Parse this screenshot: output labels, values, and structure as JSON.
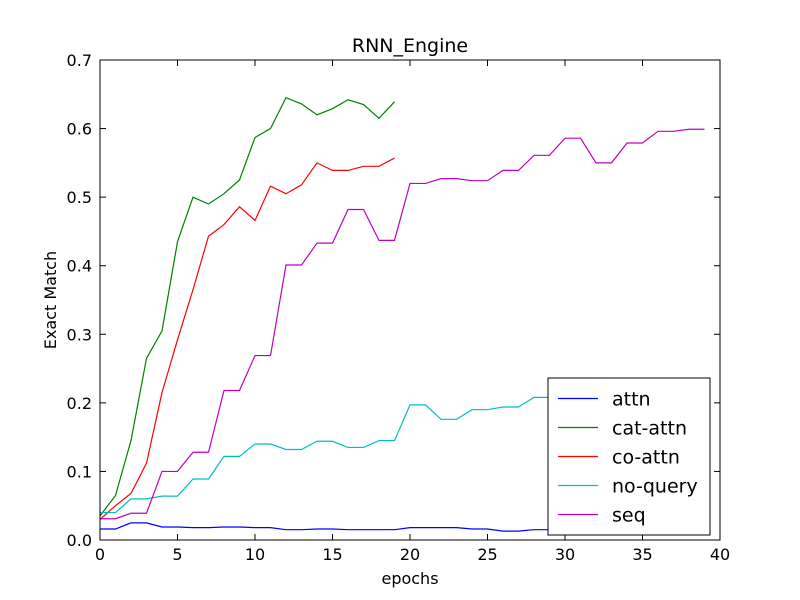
{
  "chart_data": {
    "type": "line",
    "title": "RNN_Engine",
    "xlabel": "epochs",
    "ylabel": "Exact Match",
    "xlim": [
      0,
      40
    ],
    "ylim": [
      0,
      0.7
    ],
    "xticks": [
      0,
      5,
      10,
      15,
      20,
      25,
      30,
      35,
      40
    ],
    "yticks": [
      0.0,
      0.1,
      0.2,
      0.3,
      0.4,
      0.5,
      0.6,
      0.7
    ],
    "xtick_labels": [
      "0",
      "5",
      "10",
      "15",
      "20",
      "25",
      "30",
      "35",
      "40"
    ],
    "ytick_labels": [
      "0.0",
      "0.1",
      "0.2",
      "0.3",
      "0.4",
      "0.5",
      "0.6",
      "0.7"
    ],
    "grid": false,
    "legend_position": "lower-right",
    "series": [
      {
        "name": "attn",
        "color": "#0000ff",
        "x": [
          0,
          1,
          2,
          3,
          4,
          5,
          6,
          7,
          8,
          9,
          10,
          11,
          12,
          13,
          14,
          15,
          16,
          17,
          18,
          19,
          20,
          21,
          22,
          23,
          24,
          25,
          26,
          27,
          28,
          29,
          30,
          31,
          32,
          33,
          34,
          35,
          36,
          37,
          38,
          39
        ],
        "y": [
          0.016,
          0.016,
          0.025,
          0.025,
          0.019,
          0.019,
          0.018,
          0.018,
          0.019,
          0.019,
          0.018,
          0.018,
          0.015,
          0.015,
          0.016,
          0.016,
          0.015,
          0.015,
          0.015,
          0.015,
          0.018,
          0.018,
          0.018,
          0.018,
          0.016,
          0.016,
          0.013,
          0.013,
          0.015,
          0.015,
          0.015,
          0.015,
          0.014,
          0.014,
          0.014,
          0.014,
          0.014,
          0.014,
          0.014,
          0.014
        ]
      },
      {
        "name": "cat-attn",
        "color": "#008000",
        "x": [
          0,
          1,
          2,
          3,
          4,
          5,
          6,
          7,
          8,
          9,
          10,
          11,
          12,
          13,
          14,
          15,
          16,
          17,
          18,
          19
        ],
        "y": [
          0.035,
          0.065,
          0.145,
          0.265,
          0.305,
          0.435,
          0.5,
          0.49,
          0.505,
          0.525,
          0.587,
          0.6,
          0.645,
          0.636,
          0.62,
          0.629,
          0.642,
          0.635,
          0.615,
          0.639
        ]
      },
      {
        "name": "co-attn",
        "color": "#ff0000",
        "x": [
          0,
          1,
          2,
          3,
          4,
          5,
          6,
          7,
          8,
          9,
          10,
          11,
          12,
          13,
          14,
          15,
          16,
          17,
          18,
          19
        ],
        "y": [
          0.03,
          0.05,
          0.068,
          0.112,
          0.215,
          0.292,
          0.365,
          0.443,
          0.46,
          0.486,
          0.466,
          0.516,
          0.505,
          0.518,
          0.55,
          0.539,
          0.539,
          0.545,
          0.545,
          0.557
        ]
      },
      {
        "name": "no-query",
        "color": "#00bfbf",
        "x": [
          0,
          1,
          2,
          3,
          4,
          5,
          6,
          7,
          8,
          9,
          10,
          11,
          12,
          13,
          14,
          15,
          16,
          17,
          18,
          19,
          20,
          21,
          22,
          23,
          24,
          25,
          26,
          27,
          28,
          29,
          30,
          31,
          32,
          33,
          34,
          35,
          36,
          37,
          38,
          39
        ],
        "y": [
          0.04,
          0.04,
          0.06,
          0.06,
          0.064,
          0.064,
          0.089,
          0.089,
          0.122,
          0.122,
          0.14,
          0.14,
          0.132,
          0.132,
          0.144,
          0.144,
          0.135,
          0.135,
          0.145,
          0.145,
          0.197,
          0.197,
          0.176,
          0.176,
          0.19,
          0.19,
          0.194,
          0.194,
          0.208,
          0.208,
          0.2,
          0.2,
          0.205,
          0.205,
          0.21,
          0.21,
          0.212,
          0.212,
          0.215,
          0.215
        ]
      },
      {
        "name": "seq",
        "color": "#bf00bf",
        "x": [
          0,
          1,
          2,
          3,
          4,
          5,
          6,
          7,
          8,
          9,
          10,
          11,
          12,
          13,
          14,
          15,
          16,
          17,
          18,
          19,
          20,
          21,
          22,
          23,
          24,
          25,
          26,
          27,
          28,
          29,
          30,
          31,
          32,
          33,
          34,
          35,
          36,
          37,
          38,
          39
        ],
        "y": [
          0.031,
          0.031,
          0.039,
          0.039,
          0.1,
          0.1,
          0.128,
          0.128,
          0.218,
          0.218,
          0.269,
          0.269,
          0.401,
          0.401,
          0.433,
          0.433,
          0.482,
          0.482,
          0.437,
          0.437,
          0.52,
          0.52,
          0.527,
          0.527,
          0.524,
          0.524,
          0.539,
          0.539,
          0.561,
          0.561,
          0.586,
          0.586,
          0.55,
          0.55,
          0.579,
          0.579,
          0.596,
          0.596,
          0.599,
          0.599
        ]
      }
    ]
  }
}
